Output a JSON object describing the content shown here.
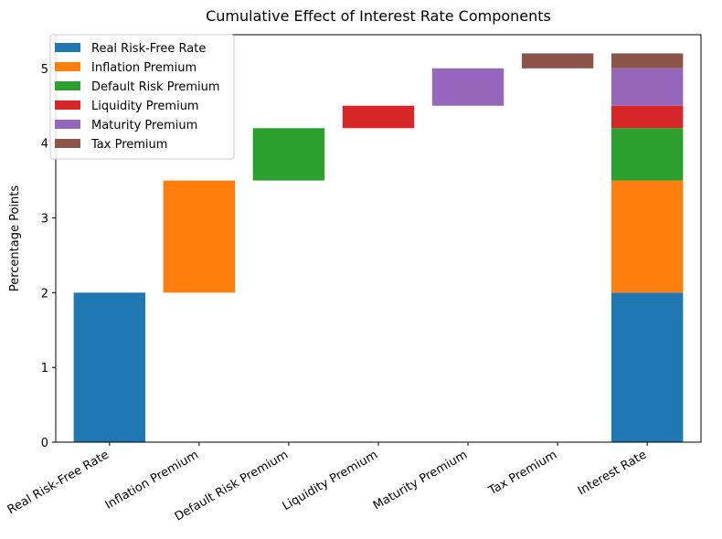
{
  "chart_data": {
    "type": "bar",
    "title": "Cumulative Effect of Interest Rate Components",
    "xlabel": "",
    "ylabel": "Percentage Points",
    "ylim": [
      0,
      5.45
    ],
    "yticks": [
      0,
      1,
      2,
      3,
      4,
      5
    ],
    "categories": [
      "Real Risk-Free Rate",
      "Inflation Premium",
      "Default Risk Premium",
      "Liquidity Premium",
      "Maturity Premium",
      "Tax Premium",
      "Interest Rate"
    ],
    "components": [
      {
        "name": "Real Risk-Free Rate",
        "value": 2.0,
        "color": "#1f77b4"
      },
      {
        "name": "Inflation Premium",
        "value": 1.5,
        "color": "#ff7f0e"
      },
      {
        "name": "Default Risk Premium",
        "value": 0.7,
        "color": "#2ca02c"
      },
      {
        "name": "Liquidity Premium",
        "value": 0.3,
        "color": "#d62728"
      },
      {
        "name": "Maturity Premium",
        "value": 0.5,
        "color": "#9467bd"
      },
      {
        "name": "Tax Premium",
        "value": 0.2,
        "color": "#8c564b"
      }
    ],
    "total_label": "Interest Rate",
    "legend": {
      "position": "upper-left",
      "entries": [
        "Real Risk-Free Rate",
        "Inflation Premium",
        "Default Risk Premium",
        "Liquidity Premium",
        "Maturity Premium",
        "Tax Premium"
      ]
    },
    "grid": false
  }
}
